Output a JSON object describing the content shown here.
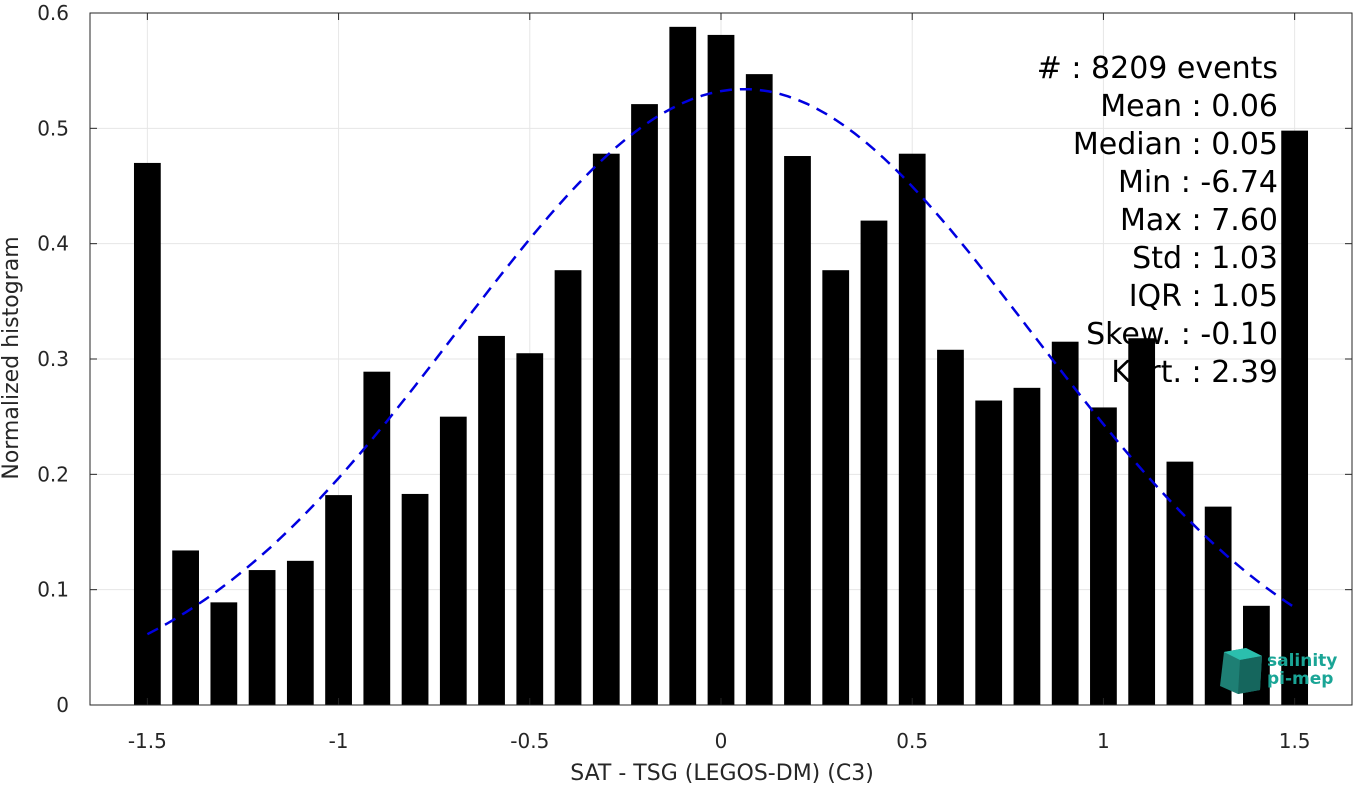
{
  "chart_data": {
    "type": "bar",
    "xlabel": "SAT - TSG (LEGOS-DM) (C3)",
    "ylabel": "Normalized histogram",
    "xlim": [
      -1.65,
      1.65
    ],
    "ylim": [
      0,
      0.6
    ],
    "xticks": [
      -1.5,
      -1,
      -0.5,
      0,
      0.5,
      1,
      1.5
    ],
    "xtick_labels": [
      "-1.5",
      "-1",
      "-0.5",
      "0",
      "0.5",
      "1",
      "1.5"
    ],
    "yticks": [
      0,
      0.1,
      0.2,
      0.3,
      0.4,
      0.5,
      0.6
    ],
    "ytick_labels": [
      "0",
      "0.1",
      "0.2",
      "0.3",
      "0.4",
      "0.5",
      "0.6"
    ],
    "grid": true,
    "bar_color": "#000000",
    "bar_width": 0.07,
    "x": [
      -1.5,
      -1.4,
      -1.3,
      -1.2,
      -1.1,
      -1.0,
      -0.9,
      -0.8,
      -0.7,
      -0.6,
      -0.5,
      -0.4,
      -0.3,
      -0.2,
      -0.1,
      0.0,
      0.1,
      0.2,
      0.3,
      0.4,
      0.5,
      0.6,
      0.7,
      0.8,
      0.9,
      1.0,
      1.1,
      1.2,
      1.3,
      1.4,
      1.5
    ],
    "values": [
      0.47,
      0.134,
      0.089,
      0.117,
      0.125,
      0.182,
      0.289,
      0.183,
      0.25,
      0.32,
      0.305,
      0.377,
      0.478,
      0.521,
      0.588,
      0.581,
      0.547,
      0.476,
      0.377,
      0.42,
      0.478,
      0.308,
      0.264,
      0.275,
      0.315,
      0.258,
      0.318,
      0.211,
      0.172,
      0.086,
      0.498
    ],
    "fit": {
      "kind": "gaussian",
      "line_style": "dashed",
      "color": "#0000e0",
      "mean": 0.06,
      "peak": 0.534,
      "x_range": [
        -1.5,
        1.5
      ],
      "sigma": 0.75
    },
    "stats": [
      "#  : 8209 events",
      "Mean : 0.06",
      "Median : 0.05",
      "Min : -6.74",
      "Max : 7.60",
      "Std : 1.03",
      "IQR : 1.05",
      "Skew. : -0.10",
      "Kurt. : 2.39"
    ]
  },
  "logo": {
    "line1": "salinity",
    "line2": "pi-mep",
    "color": "#1aa596"
  }
}
